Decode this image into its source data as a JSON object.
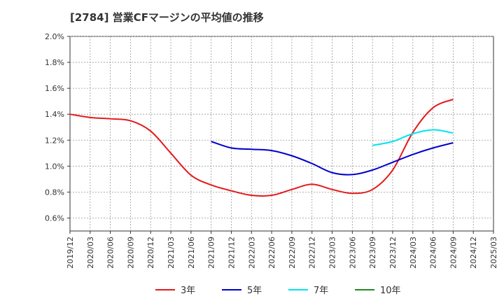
{
  "chart_data": {
    "type": "line",
    "title": "[2784]  営業CFマージンの平均値の推移",
    "xlabel": "",
    "ylabel": "",
    "x_ticks": [
      "2019/12",
      "2020/03",
      "2020/06",
      "2020/09",
      "2020/12",
      "2021/03",
      "2021/06",
      "2021/09",
      "2021/12",
      "2022/03",
      "2022/06",
      "2022/09",
      "2022/12",
      "2023/03",
      "2023/06",
      "2023/09",
      "2023/12",
      "2024/03",
      "2024/06",
      "2024/09",
      "2024/12",
      "2025/03"
    ],
    "y_ticks": [
      "0.6%",
      "0.8%",
      "1.0%",
      "1.2%",
      "1.4%",
      "1.6%",
      "1.8%",
      "2.0%"
    ],
    "ylim": [
      0.5,
      2.0
    ],
    "grid": true,
    "legend_position": "bottom",
    "series": [
      {
        "name": "3年",
        "color": "#e31a1c",
        "points": [
          [
            "2019/12",
            1.4
          ],
          [
            "2020/03",
            1.375
          ],
          [
            "2020/06",
            1.365
          ],
          [
            "2020/09",
            1.35
          ],
          [
            "2020/12",
            1.27
          ],
          [
            "2021/03",
            1.1
          ],
          [
            "2021/06",
            0.93
          ],
          [
            "2021/09",
            0.855
          ],
          [
            "2021/12",
            0.81
          ],
          [
            "2022/03",
            0.775
          ],
          [
            "2022/06",
            0.775
          ],
          [
            "2022/09",
            0.82
          ],
          [
            "2022/12",
            0.86
          ],
          [
            "2023/03",
            0.82
          ],
          [
            "2023/06",
            0.79
          ],
          [
            "2023/09",
            0.82
          ],
          [
            "2023/12",
            0.97
          ],
          [
            "2024/03",
            1.26
          ],
          [
            "2024/06",
            1.45
          ],
          [
            "2024/09",
            1.515
          ]
        ]
      },
      {
        "name": "5年",
        "color": "#0000cc",
        "points": [
          [
            "2021/09",
            1.19
          ],
          [
            "2021/12",
            1.14
          ],
          [
            "2022/03",
            1.13
          ],
          [
            "2022/06",
            1.12
          ],
          [
            "2022/09",
            1.08
          ],
          [
            "2022/12",
            1.02
          ],
          [
            "2023/03",
            0.95
          ],
          [
            "2023/06",
            0.935
          ],
          [
            "2023/09",
            0.97
          ],
          [
            "2023/12",
            1.03
          ],
          [
            "2024/03",
            1.09
          ],
          [
            "2024/06",
            1.14
          ],
          [
            "2024/09",
            1.18
          ]
        ]
      },
      {
        "name": "7年",
        "color": "#00e5ee",
        "points": [
          [
            "2023/09",
            1.16
          ],
          [
            "2023/12",
            1.19
          ],
          [
            "2024/03",
            1.25
          ],
          [
            "2024/06",
            1.28
          ],
          [
            "2024/09",
            1.255
          ]
        ]
      },
      {
        "name": "10年",
        "color": "#228b22",
        "points": []
      }
    ]
  }
}
